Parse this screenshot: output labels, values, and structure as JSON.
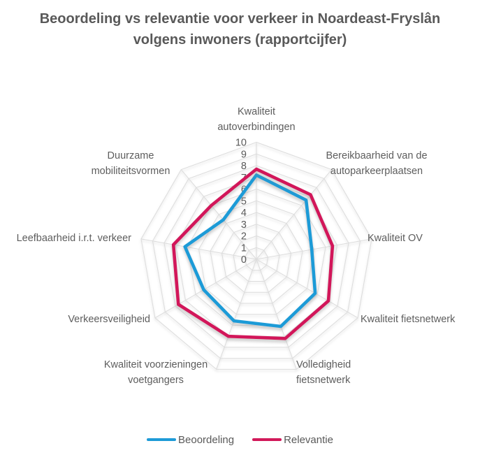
{
  "title": {
    "text": "Beoordeling vs relevantie voor verkeer in Noardeast-Fryslân volgens inwoners (rapportcijfer)"
  },
  "colors": {
    "title_text": "#595959",
    "label_text": "#5d5d5d",
    "grid": "#DCDCDC",
    "tick_text": "#595959",
    "series_blue": "#1E9BD7",
    "series_pink": "#D2195A"
  },
  "chart_data": {
    "type": "radar",
    "title": "Beoordeling vs relevantie voor verkeer in Noardeast-Fryslân volgens inwoners (rapportcijfer)",
    "categories": [
      "Kwaliteit autoverbindingen",
      "Bereikbaarheid van de autoparkeerplaatsen",
      "Kwaliteit OV",
      "Kwaliteit fietsnetwerk",
      "Volledigheid fietsnetwerk",
      "Kwaliteit voorzieningen voetgangers",
      "Verkeersveiligheid",
      "Leefbaarheid i.r.t. verkeer",
      "Duurzame mobiliteitsvormen"
    ],
    "series": [
      {
        "name": "Beoordeling",
        "color": "#1E9BD7",
        "values": [
          7.2,
          6.6,
          4.8,
          5.8,
          6.1,
          5.6,
          5.2,
          6.2,
          4.4
        ]
      },
      {
        "name": "Relevantie",
        "color": "#D2195A",
        "values": [
          7.7,
          7.2,
          6.6,
          7.1,
          7.2,
          7.0,
          7.7,
          7.2,
          6.0
        ]
      }
    ],
    "axis": {
      "min": 0,
      "max": 10,
      "step": 1,
      "tick_labels": [
        "0",
        "1",
        "2",
        "3",
        "4",
        "5",
        "6",
        "7",
        "8",
        "9",
        "10"
      ]
    },
    "grid": "on",
    "legend_position": "bottom"
  }
}
